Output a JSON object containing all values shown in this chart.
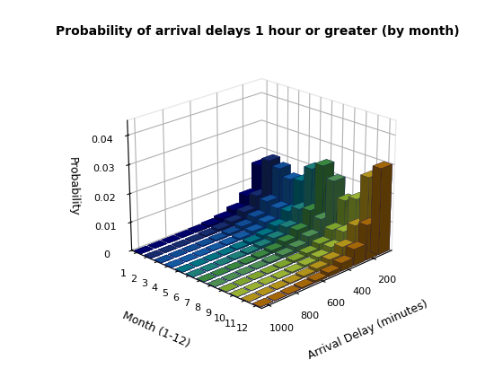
{
  "title": "Probability of arrival delays 1 hour or greater (by month)",
  "xlabel": "Arrival Delay (minutes)",
  "ylabel": "Month (1-12)",
  "zlabel": "Probability",
  "delay_centers": [
    100,
    200,
    300,
    400,
    500,
    600,
    700,
    800,
    900,
    1000
  ],
  "months": [
    1,
    2,
    3,
    4,
    5,
    6,
    7,
    8,
    9,
    10,
    11,
    12
  ],
  "probabilities": [
    [
      0.016,
      0.0065,
      0.003,
      0.0015,
      0.0008,
      0.0004,
      0.0002,
      0.0001,
      5e-05,
      2e-05
    ],
    [
      0.019,
      0.0078,
      0.0036,
      0.0018,
      0.0009,
      0.0005,
      0.0002,
      0.0001,
      5e-05,
      2e-05
    ],
    [
      0.0175,
      0.0072,
      0.0033,
      0.0016,
      0.0008,
      0.0004,
      0.0002,
      0.0001,
      5e-05,
      2e-05
    ],
    [
      0.015,
      0.0062,
      0.0029,
      0.0014,
      0.0007,
      0.0004,
      0.0002,
      0.0001,
      5e-05,
      2e-05
    ],
    [
      0.0158,
      0.0065,
      0.003,
      0.0015,
      0.0008,
      0.0004,
      0.0002,
      0.0001,
      5e-05,
      2e-05
    ],
    [
      0.0215,
      0.0088,
      0.0041,
      0.002,
      0.001,
      0.0005,
      0.0003,
      0.0001,
      7e-05,
      3e-05
    ],
    [
      0.024,
      0.0098,
      0.0046,
      0.0023,
      0.0011,
      0.0006,
      0.0003,
      0.0001,
      7e-05,
      3e-05
    ],
    [
      0.02,
      0.0082,
      0.0038,
      0.0019,
      0.001,
      0.0005,
      0.0002,
      0.0001,
      6e-05,
      2e-05
    ],
    [
      0.0145,
      0.0059,
      0.0028,
      0.0014,
      0.0007,
      0.0003,
      0.0002,
      0.0001,
      4e-05,
      2e-05
    ],
    [
      0.0165,
      0.0068,
      0.0032,
      0.0016,
      0.0008,
      0.0004,
      0.0002,
      0.0001,
      5e-05,
      2e-05
    ],
    [
      0.0255,
      0.0105,
      0.0049,
      0.0024,
      0.0012,
      0.0006,
      0.0003,
      0.0002,
      8e-05,
      3e-05
    ],
    [
      0.03,
      0.0122,
      0.0057,
      0.0028,
      0.0014,
      0.0007,
      0.0004,
      0.0002,
      9e-05,
      4e-05
    ]
  ],
  "zlim": [
    0,
    0.045
  ],
  "zticks": [
    0,
    0.01,
    0.02,
    0.03,
    0.04
  ],
  "xticks": [
    200,
    400,
    600,
    800,
    1000
  ],
  "yticks": [
    1,
    2,
    3,
    4,
    5,
    6,
    7,
    8,
    9,
    10,
    11,
    12
  ],
  "bin_width": 90,
  "bar_depth": 0.7,
  "elev": 22,
  "azim": 225,
  "title_fontsize": 10,
  "label_fontsize": 9,
  "tick_fontsize": 8,
  "matlab_colors": [
    "#00008B",
    "#1E3A8A",
    "#1565C0",
    "#1976D2",
    "#0097A7",
    "#26A69A",
    "#4CAF50",
    "#66BB6A",
    "#A5D63A",
    "#C8E840",
    "#E8C020",
    "#D4860A"
  ]
}
